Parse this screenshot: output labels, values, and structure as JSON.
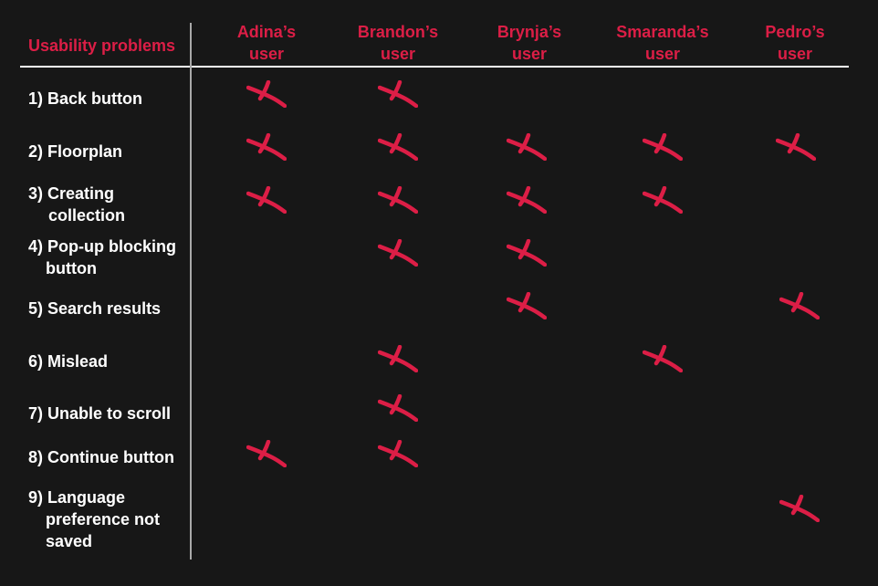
{
  "header": {
    "corner_label": "Usability problems",
    "columns": [
      {
        "line1": "Adina’s",
        "line2": "user"
      },
      {
        "line1": "Brandon’s",
        "line2": "user"
      },
      {
        "line1": "Brynja’s",
        "line2": "user"
      },
      {
        "line1": "Smaranda’s",
        "line2": "user"
      },
      {
        "line1": "Pedro’s",
        "line2": "user"
      }
    ]
  },
  "colors": {
    "accent": "#dc1e46",
    "text": "#ffffff",
    "background": "#171717"
  },
  "mark_icon": "x-check-icon",
  "rows": [
    {
      "lines": [
        "1) Back button"
      ],
      "marks": [
        true,
        true,
        false,
        false,
        false
      ]
    },
    {
      "lines": [
        "2) Floorplan"
      ],
      "marks": [
        true,
        true,
        true,
        true,
        true
      ]
    },
    {
      "lines": [
        "3) Creating",
        "collection"
      ],
      "marks": [
        true,
        true,
        true,
        true,
        false
      ]
    },
    {
      "lines": [
        "4) Pop-up blocking",
        "button"
      ],
      "marks": [
        false,
        true,
        true,
        false,
        false
      ]
    },
    {
      "lines": [
        "5) Search results"
      ],
      "marks": [
        false,
        false,
        true,
        false,
        true
      ]
    },
    {
      "lines": [
        "6) Mislead"
      ],
      "marks": [
        false,
        true,
        false,
        true,
        false
      ]
    },
    {
      "lines": [
        "7) Unable to scroll"
      ],
      "marks": [
        false,
        true,
        false,
        false,
        false
      ]
    },
    {
      "lines": [
        "8) Continue button"
      ],
      "marks": [
        true,
        true,
        false,
        false,
        false
      ]
    },
    {
      "lines": [
        "9) Language",
        "preference not",
        "saved"
      ],
      "marks": [
        false,
        false,
        false,
        false,
        true
      ]
    }
  ]
}
